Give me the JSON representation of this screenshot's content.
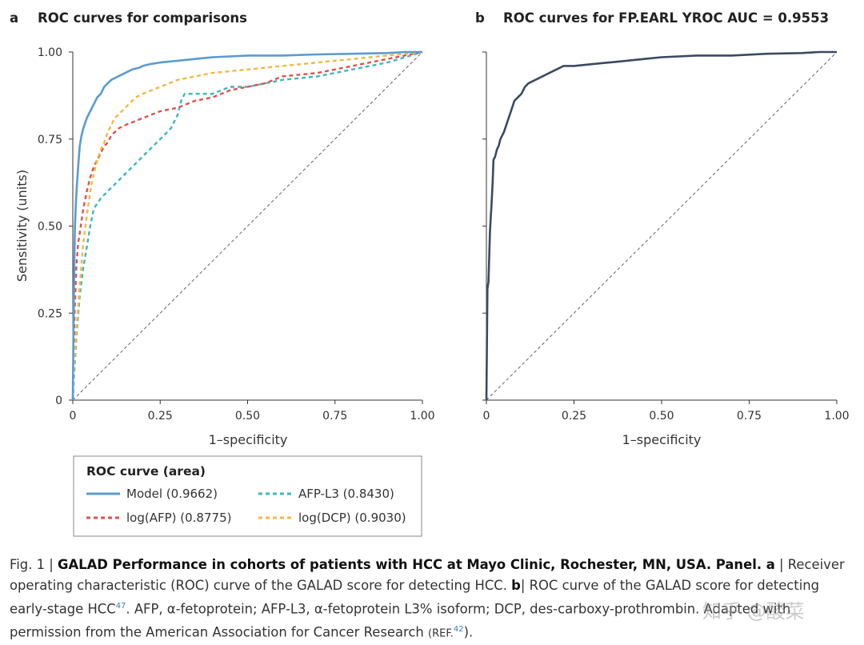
{
  "chart_data": [
    {
      "panel_letter": "a",
      "title": "ROC curves for comparisons",
      "type": "line",
      "xlabel": "1–specificity",
      "ylabel": "Sensitivity (units)",
      "xlim": [
        0,
        1
      ],
      "ylim": [
        0,
        1
      ],
      "x_ticks": [
        "0",
        "0.25",
        "0.50",
        "0.75",
        "1.00"
      ],
      "y_ticks": [
        "0",
        "0.25",
        "0.50",
        "0.75",
        "1.00"
      ],
      "reference_line": "diagonal dashed",
      "legend": {
        "title": "ROC curve (area)",
        "placement": "below"
      },
      "series": [
        {
          "name": "Model (0.9662)",
          "color": "#5b9bd0",
          "style": "solid",
          "x": [
            0,
            0.003,
            0.006,
            0.009,
            0.012,
            0.016,
            0.02,
            0.025,
            0.03,
            0.04,
            0.05,
            0.06,
            0.07,
            0.08,
            0.09,
            0.1,
            0.11,
            0.12,
            0.13,
            0.15,
            0.17,
            0.19,
            0.2,
            0.22,
            0.25,
            0.3,
            0.35,
            0.4,
            0.5,
            0.6,
            0.7,
            0.8,
            0.9,
            0.95,
            1.0
          ],
          "y": [
            0,
            0.3,
            0.49,
            0.57,
            0.62,
            0.68,
            0.73,
            0.76,
            0.78,
            0.81,
            0.83,
            0.85,
            0.87,
            0.88,
            0.9,
            0.91,
            0.92,
            0.925,
            0.93,
            0.94,
            0.95,
            0.955,
            0.96,
            0.965,
            0.97,
            0.975,
            0.98,
            0.985,
            0.99,
            0.99,
            0.993,
            0.995,
            0.997,
            1.0,
            1.0
          ]
        },
        {
          "name": "AFP-L3 (0.8430)",
          "color": "#3fb6bf",
          "style": "dashed",
          "x": [
            0,
            0.01,
            0.02,
            0.03,
            0.04,
            0.05,
            0.06,
            0.08,
            0.1,
            0.12,
            0.14,
            0.16,
            0.18,
            0.2,
            0.22,
            0.25,
            0.28,
            0.3,
            0.31,
            0.32,
            0.35,
            0.4,
            0.45,
            0.5,
            0.55,
            0.6,
            0.7,
            0.8,
            0.9,
            1.0
          ],
          "y": [
            0,
            0.18,
            0.3,
            0.38,
            0.44,
            0.5,
            0.55,
            0.58,
            0.6,
            0.62,
            0.64,
            0.66,
            0.68,
            0.7,
            0.72,
            0.75,
            0.78,
            0.82,
            0.86,
            0.88,
            0.88,
            0.88,
            0.9,
            0.9,
            0.91,
            0.92,
            0.93,
            0.95,
            0.97,
            1.0
          ]
        },
        {
          "name": "log(AFP) (0.8775)",
          "color": "#d9534f",
          "style": "dashed",
          "x": [
            0,
            0.005,
            0.01,
            0.015,
            0.02,
            0.03,
            0.04,
            0.05,
            0.06,
            0.07,
            0.08,
            0.09,
            0.1,
            0.11,
            0.13,
            0.15,
            0.2,
            0.25,
            0.3,
            0.35,
            0.4,
            0.45,
            0.5,
            0.55,
            0.6,
            0.7,
            0.8,
            0.9,
            1.0
          ],
          "y": [
            0,
            0.25,
            0.38,
            0.45,
            0.48,
            0.55,
            0.6,
            0.64,
            0.67,
            0.69,
            0.71,
            0.73,
            0.74,
            0.76,
            0.78,
            0.79,
            0.81,
            0.83,
            0.84,
            0.86,
            0.87,
            0.89,
            0.9,
            0.91,
            0.93,
            0.94,
            0.96,
            0.98,
            1.0
          ]
        },
        {
          "name": "log(DCP) (0.9030)",
          "color": "#f2b844",
          "style": "dashed",
          "x": [
            0,
            0.005,
            0.01,
            0.02,
            0.03,
            0.04,
            0.05,
            0.06,
            0.07,
            0.08,
            0.09,
            0.1,
            0.11,
            0.12,
            0.14,
            0.16,
            0.18,
            0.2,
            0.25,
            0.3,
            0.35,
            0.4,
            0.5,
            0.6,
            0.7,
            0.8,
            0.9,
            1.0
          ],
          "y": [
            0,
            0.12,
            0.2,
            0.33,
            0.45,
            0.53,
            0.6,
            0.65,
            0.69,
            0.72,
            0.74,
            0.77,
            0.79,
            0.81,
            0.83,
            0.85,
            0.87,
            0.88,
            0.9,
            0.92,
            0.93,
            0.94,
            0.95,
            0.96,
            0.97,
            0.98,
            0.99,
            1.0
          ]
        }
      ]
    },
    {
      "panel_letter": "b",
      "title": "ROC curves for FP.EARL YROC AUC = 0.9553",
      "type": "line",
      "xlabel": "1–specificity",
      "ylabel": "",
      "xlim": [
        0,
        1
      ],
      "ylim": [
        0,
        1
      ],
      "x_ticks": [
        "0",
        "0.25",
        "0.50",
        "0.75",
        "1.00"
      ],
      "reference_line": "diagonal dashed",
      "series": [
        {
          "color": "#3b4a63",
          "style": "solid",
          "x": [
            0,
            0.003,
            0.006,
            0.01,
            0.012,
            0.015,
            0.018,
            0.02,
            0.025,
            0.03,
            0.035,
            0.04,
            0.05,
            0.06,
            0.07,
            0.08,
            0.09,
            0.1,
            0.11,
            0.12,
            0.14,
            0.16,
            0.18,
            0.2,
            0.22,
            0.25,
            0.3,
            0.35,
            0.4,
            0.45,
            0.5,
            0.6,
            0.7,
            0.8,
            0.9,
            0.95,
            1.0
          ],
          "y": [
            0,
            0.32,
            0.34,
            0.48,
            0.52,
            0.57,
            0.63,
            0.69,
            0.7,
            0.72,
            0.73,
            0.75,
            0.77,
            0.8,
            0.83,
            0.86,
            0.87,
            0.88,
            0.9,
            0.91,
            0.92,
            0.93,
            0.94,
            0.95,
            0.96,
            0.96,
            0.965,
            0.97,
            0.975,
            0.98,
            0.985,
            0.99,
            0.99,
            0.995,
            0.997,
            1.0,
            1.0
          ]
        }
      ]
    }
  ],
  "caption": {
    "fig_label": "Fig. 1 |",
    "bold_title": "GALAD Performance in cohorts of patients with HCC at Mayo Clinic, Rochester, MN, USA. Panel. a",
    "part_a": "| Receiver operating characteristic (ROC) curve of the GALAD score for detecting HCC.",
    "b_label": "b",
    "part_b": "| ROC curve of the GALAD score for detecting early-stage HCC",
    "ref47": "47",
    "part_c": ". AFP, α-fetoprotein; AFP-L3, α-fetoprotein L3% isoform; DCP, des-carboxy-prothrombin. Adapted with permission from the American Association for Cancer Research",
    "ref_text": "(REF.",
    "ref42": "42",
    "ref_close": ")."
  },
  "watermark": "知乎 @酸菜"
}
